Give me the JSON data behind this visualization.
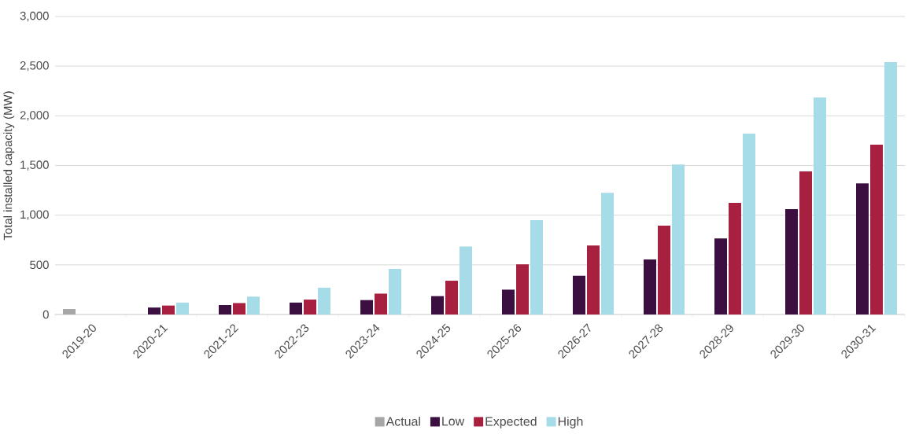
{
  "chart_data": {
    "type": "bar",
    "ylabel": "Total installed capacity (MW)",
    "categories": [
      "2019-20",
      "2020-21",
      "2021-22",
      "2022-23",
      "2023-24",
      "2024-25",
      "2025-26",
      "2026-27",
      "2027-28",
      "2028-29",
      "2029-30",
      "2030-31"
    ],
    "series": [
      {
        "name": "Actual",
        "color": "#a6a6a6",
        "values": [
          55,
          null,
          null,
          null,
          null,
          null,
          null,
          null,
          null,
          null,
          null,
          null
        ]
      },
      {
        "name": "Low",
        "color": "#3b0f3f",
        "values": [
          null,
          70,
          95,
          120,
          145,
          185,
          250,
          390,
          555,
          765,
          1060,
          1320
        ]
      },
      {
        "name": "Expected",
        "color": "#a8203f",
        "values": [
          null,
          90,
          115,
          150,
          210,
          340,
          505,
          695,
          895,
          1125,
          1440,
          1710
        ]
      },
      {
        "name": "High",
        "color": "#a6dbe8",
        "values": [
          null,
          120,
          180,
          270,
          460,
          685,
          950,
          1225,
          1510,
          1820,
          2185,
          2540
        ]
      }
    ],
    "ylim": [
      0,
      3000
    ],
    "yticks": [
      0,
      500,
      {
        "value": 1000,
        "label": "1,000"
      },
      {
        "value": 1500,
        "label": "1,500"
      },
      {
        "value": 2000,
        "label": "2,000"
      },
      {
        "value": 2500,
        "label": "2,500"
      },
      {
        "value": 3000,
        "label": "3,000"
      }
    ],
    "grid": "y",
    "legend": "bottom"
  }
}
